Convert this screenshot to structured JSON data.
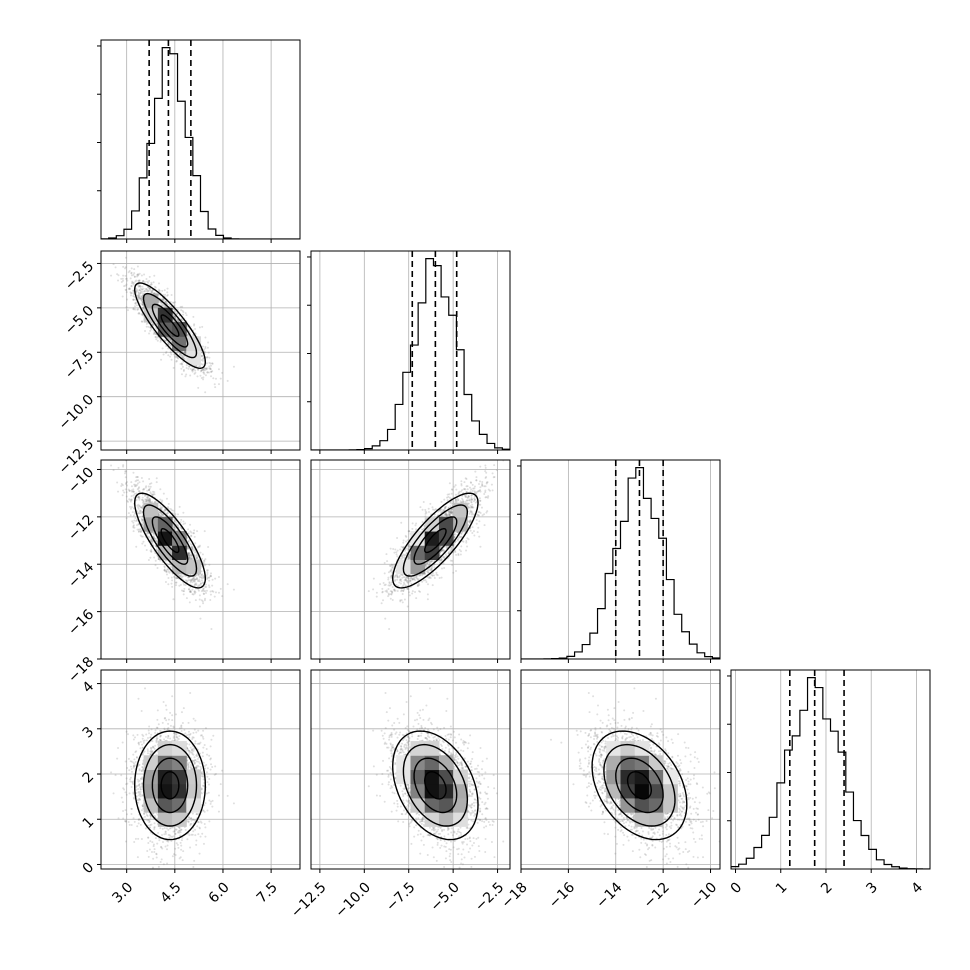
{
  "chart_data": {
    "type": "corner",
    "parameters": [
      {
        "range": [
          2.2,
          8.4
        ],
        "ticks": [
          3.0,
          4.5,
          6.0,
          7.5
        ],
        "tick_labels": [
          "3.0",
          "4.5",
          "6.0",
          "7.5"
        ],
        "quantiles": [
          3.7,
          4.3,
          5.0
        ],
        "mean": 4.35,
        "sd": 0.55
      },
      {
        "range": [
          -13.0,
          -1.8
        ],
        "ticks": [
          -12.5,
          -10.0,
          -7.5,
          -5.0,
          -2.5
        ],
        "tick_labels": [
          "−12.5",
          "−10.0",
          "−7.5",
          "−5.0",
          "−2.5"
        ],
        "quantiles": [
          -7.3,
          -6.0,
          -4.8
        ],
        "mean": -6.0,
        "sd": 1.2
      },
      {
        "range": [
          -18.0,
          -9.6
        ],
        "ticks": [
          -18,
          -16,
          -14,
          -12,
          -10
        ],
        "tick_labels": [
          "−18",
          "−16",
          "−14",
          "−12",
          "−10"
        ],
        "quantiles": [
          -14.0,
          -13.0,
          -12.0
        ],
        "mean": -13.0,
        "sd": 1.0
      },
      {
        "range": [
          -0.1,
          4.3
        ],
        "ticks": [
          0,
          1,
          2,
          3,
          4
        ],
        "tick_labels": [
          "0",
          "1",
          "2",
          "3",
          "4"
        ],
        "quantiles": [
          1.2,
          1.75,
          2.4
        ],
        "mean": 1.75,
        "sd": 0.6
      }
    ],
    "correlations": [
      [
        1.0,
        -0.85,
        -0.8,
        0.0
      ],
      [
        -0.85,
        1.0,
        0.8,
        -0.35
      ],
      [
        -0.8,
        0.8,
        1.0,
        -0.35
      ],
      [
        0.0,
        -0.35,
        -0.35,
        1.0
      ]
    ],
    "contour_levels_sigma": [
      0.5,
      1.0,
      1.5,
      2.0
    ],
    "colors": {
      "samples": "#7f7f7f",
      "contour": "#000000",
      "histogram": "#000000",
      "grid": "#b0b0b0"
    },
    "grid": true,
    "xlabel": "",
    "ylabel": "",
    "title": ""
  }
}
